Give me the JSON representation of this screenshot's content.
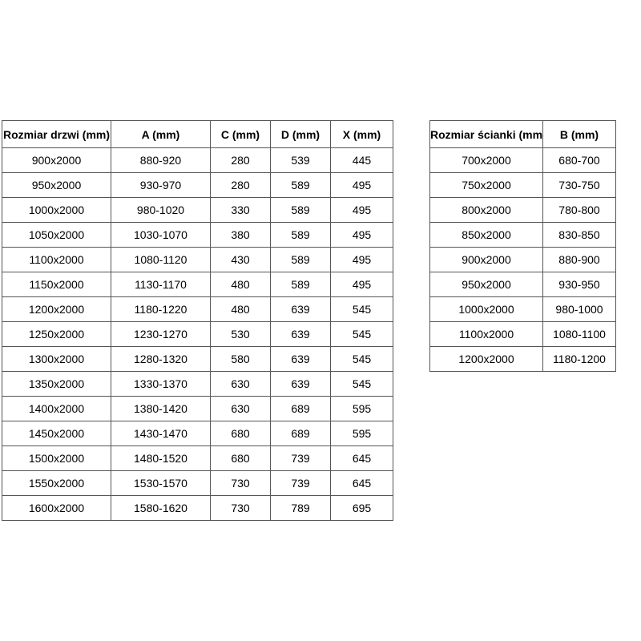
{
  "page": {
    "background": "#ffffff"
  },
  "colors": {
    "border": "#555555",
    "text": "#000000"
  },
  "tables": {
    "doors": {
      "title": "door-sizes-table",
      "headers": [
        "Rozmiar drzwi (mm)",
        "A (mm)",
        "C (mm)",
        "D (mm)",
        "X (mm)"
      ],
      "rows": [
        [
          "900x2000",
          "880-920",
          "280",
          "539",
          "445"
        ],
        [
          "950x2000",
          "930-970",
          "280",
          "589",
          "495"
        ],
        [
          "1000x2000",
          "980-1020",
          "330",
          "589",
          "495"
        ],
        [
          "1050x2000",
          "1030-1070",
          "380",
          "589",
          "495"
        ],
        [
          "1100x2000",
          "1080-1120",
          "430",
          "589",
          "495"
        ],
        [
          "1150x2000",
          "1130-1170",
          "480",
          "589",
          "495"
        ],
        [
          "1200x2000",
          "1180-1220",
          "480",
          "639",
          "545"
        ],
        [
          "1250x2000",
          "1230-1270",
          "530",
          "639",
          "545"
        ],
        [
          "1300x2000",
          "1280-1320",
          "580",
          "639",
          "545"
        ],
        [
          "1350x2000",
          "1330-1370",
          "630",
          "639",
          "545"
        ],
        [
          "1400x2000",
          "1380-1420",
          "630",
          "689",
          "595"
        ],
        [
          "1450x2000",
          "1430-1470",
          "680",
          "689",
          "595"
        ],
        [
          "1500x2000",
          "1480-1520",
          "680",
          "739",
          "645"
        ],
        [
          "1550x2000",
          "1530-1570",
          "730",
          "739",
          "645"
        ],
        [
          "1600x2000",
          "1580-1620",
          "730",
          "789",
          "695"
        ]
      ]
    },
    "walls": {
      "title": "wall-sizes-table",
      "headers": [
        "Rozmiar ścianki (mm)",
        "B (mm)"
      ],
      "rows": [
        [
          "700x2000",
          "680-700"
        ],
        [
          "750x2000",
          "730-750"
        ],
        [
          "800x2000",
          "780-800"
        ],
        [
          "850x2000",
          "830-850"
        ],
        [
          "900x2000",
          "880-900"
        ],
        [
          "950x2000",
          "930-950"
        ],
        [
          "1000x2000",
          "980-1000"
        ],
        [
          "1100x2000",
          "1080-1100"
        ],
        [
          "1200x2000",
          "1180-1200"
        ]
      ]
    }
  }
}
